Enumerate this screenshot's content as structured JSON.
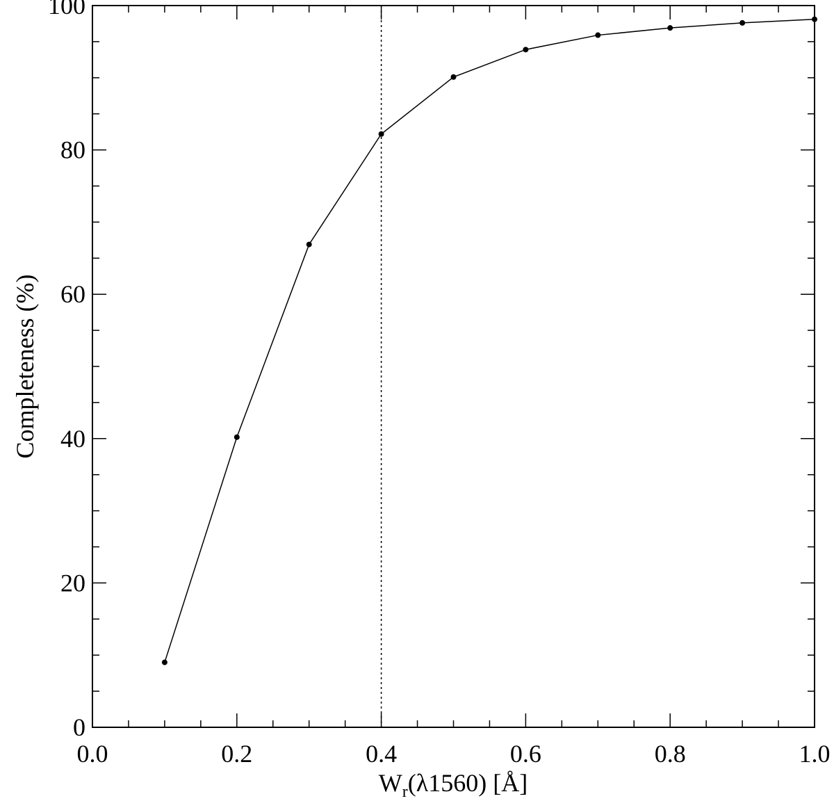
{
  "chart_data": {
    "type": "line",
    "x_label": [
      "W",
      "r",
      "(λ1560) [Å]"
    ],
    "y_label": "Completeness (%)",
    "x": [
      0.1,
      0.2,
      0.3,
      0.4,
      0.5,
      0.6,
      0.7,
      0.8,
      0.9,
      1.0
    ],
    "values": [
      9.0,
      40.2,
      66.9,
      82.2,
      90.1,
      93.9,
      95.9,
      96.9,
      97.6,
      98.1
    ],
    "color": "#000000",
    "vline": 0.4,
    "xlim": [
      0,
      1.0
    ],
    "xticks": [
      {
        "value": 0,
        "label": "0.0"
      },
      0.2,
      0.4,
      0.6,
      0.8,
      {
        "value": 1.0,
        "label": "1.0"
      }
    ],
    "ylim": [
      0,
      100
    ],
    "yticks": [
      0,
      20,
      40,
      60,
      80,
      100
    ],
    "grid": false
  }
}
